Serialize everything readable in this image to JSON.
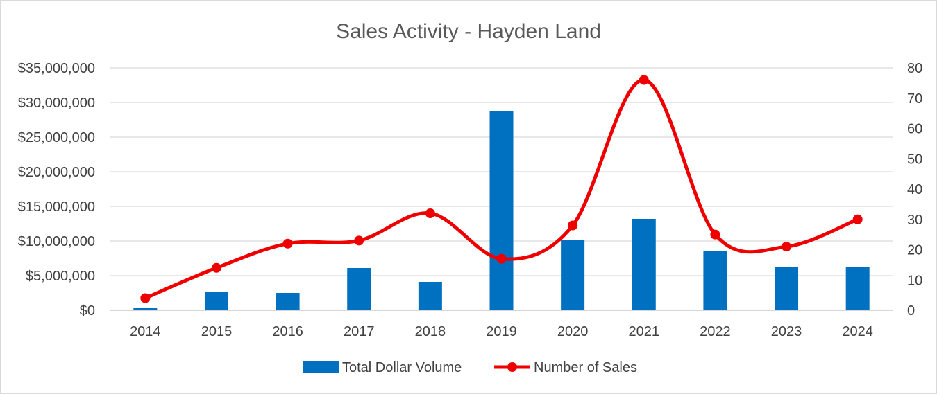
{
  "chart_data": {
    "type": "bar",
    "title": "Sales Activity - Hayden Land",
    "categories": [
      "2014",
      "2015",
      "2016",
      "2017",
      "2018",
      "2019",
      "2020",
      "2021",
      "2022",
      "2023",
      "2024"
    ],
    "series": [
      {
        "name": "Total Dollar Volume",
        "type": "bar",
        "axis": "left",
        "color": "#0070C0",
        "values": [
          300000,
          2600000,
          2500000,
          6100000,
          4100000,
          28700000,
          10100000,
          13200000,
          8600000,
          6200000,
          6300000
        ]
      },
      {
        "name": "Number of Sales",
        "type": "line",
        "smooth": true,
        "markers": true,
        "axis": "right",
        "color": "#EE0000",
        "values": [
          4,
          14,
          22,
          23,
          32,
          17,
          28,
          76,
          25,
          21,
          30
        ]
      }
    ],
    "y_left": {
      "ylim": [
        0,
        35000000
      ],
      "ticks": [
        0,
        5000000,
        10000000,
        15000000,
        20000000,
        25000000,
        30000000,
        35000000
      ],
      "tick_labels": [
        "$0",
        "$5,000,000",
        "$10,000,000",
        "$15,000,000",
        "$20,000,000",
        "$25,000,000",
        "$30,000,000",
        "$35,000,000"
      ]
    },
    "y_right": {
      "ylim": [
        0,
        80
      ],
      "ticks": [
        0,
        10,
        20,
        30,
        40,
        50,
        60,
        70,
        80
      ],
      "tick_labels": [
        "0",
        "10",
        "20",
        "30",
        "40",
        "50",
        "60",
        "70",
        "80"
      ]
    },
    "grid": true,
    "gridline_color": "#d9d9d9",
    "axis_line_color": "#bfbfbf",
    "legend_position": "bottom"
  }
}
